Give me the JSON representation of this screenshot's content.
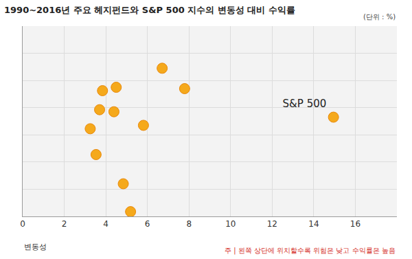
{
  "chart_data": {
    "type": "scatter",
    "title": "1990~2016년 주요 헤지펀드와 S&P 500 지수의 변동성 대비 수익률",
    "unit": "(단위 : %)",
    "x_label": "변동성",
    "note": "주 | 왼쪽 상단에 위치할수록 위험은 낮고 수익률은 높음",
    "x": [
      6.71,
      3.84,
      4.5,
      7.79,
      3.7,
      4.39,
      5.81,
      3.25,
      3.53,
      4.84,
      5.19,
      14.95
    ],
    "values": [
      10.9,
      9.25,
      9.5,
      9.4,
      7.85,
      7.7,
      6.7,
      6.45,
      4.55,
      2.4,
      0.35,
      7.3
    ],
    "point_labels": [
      null,
      null,
      null,
      null,
      null,
      null,
      null,
      null,
      null,
      null,
      null,
      "S&P 500"
    ],
    "color": "#f5a91c",
    "marker": "circle",
    "xlim": [
      0,
      18
    ],
    "xticks": [
      0,
      2,
      4,
      6,
      8,
      10,
      12,
      14,
      16
    ],
    "ylim": [
      0,
      14
    ],
    "yticks": [
      0,
      2,
      4,
      6,
      8,
      10,
      12,
      14
    ],
    "grid": true,
    "tick_labels": "x"
  }
}
